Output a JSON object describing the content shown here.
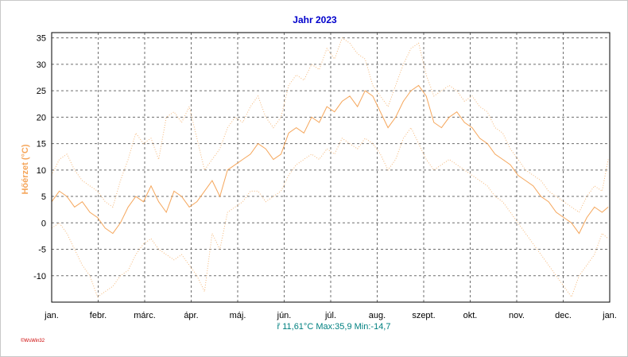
{
  "chart_data": {
    "type": "line",
    "title": "Jahr 2023",
    "ylabel": "Hőérzet (°C)",
    "ylim": [
      -15,
      36
    ],
    "y_ticks": [
      35,
      30,
      25,
      20,
      15,
      10,
      5,
      0,
      -5,
      -10
    ],
    "x_ticks": [
      "jan.",
      "febr.",
      "márc.",
      "ápr.",
      "máj.",
      "jún.",
      "júl.",
      "aug.",
      "szept.",
      "okt.",
      "nov.",
      "dec.",
      "jan."
    ],
    "grid": true,
    "series": [
      {
        "style": "solid",
        "color": "#f5a65b",
        "x": [
          1,
          6,
          11,
          16,
          21,
          26,
          31,
          36,
          41,
          46,
          51,
          56,
          61,
          66,
          71,
          76,
          81,
          86,
          91,
          96,
          101,
          106,
          111,
          116,
          121,
          126,
          131,
          136,
          141,
          146,
          151,
          156,
          161,
          166,
          171,
          176,
          181,
          186,
          191,
          196,
          201,
          206,
          211,
          216,
          221,
          226,
          231,
          236,
          241,
          246,
          251,
          256,
          261,
          266,
          271,
          276,
          281,
          286,
          291,
          296,
          301,
          306,
          311,
          316,
          321,
          326,
          331,
          336,
          341,
          346,
          351,
          356,
          361,
          365
        ],
        "values": [
          4,
          6,
          5,
          3,
          4,
          2,
          1,
          -1,
          -2,
          0,
          3,
          5,
          4,
          7,
          4,
          2,
          6,
          5,
          3,
          4,
          6,
          8,
          5,
          10,
          11,
          12,
          13,
          15,
          14,
          12,
          13,
          17,
          18,
          17,
          20,
          19,
          22,
          21,
          23,
          24,
          22,
          25,
          24,
          21,
          18,
          20,
          23,
          25,
          26,
          24,
          19,
          18,
          20,
          21,
          19,
          18,
          16,
          15,
          13,
          12,
          11,
          9,
          8,
          7,
          5,
          4,
          2,
          1,
          0,
          -2,
          1,
          3,
          2,
          3
        ]
      },
      {
        "style": "dotted",
        "color": "#f5b87a",
        "x": [
          1,
          6,
          11,
          16,
          21,
          26,
          31,
          36,
          41,
          46,
          51,
          56,
          61,
          66,
          71,
          76,
          81,
          86,
          91,
          96,
          101,
          106,
          111,
          116,
          121,
          126,
          131,
          136,
          141,
          146,
          151,
          156,
          161,
          166,
          171,
          176,
          181,
          186,
          191,
          196,
          201,
          206,
          211,
          216,
          221,
          226,
          231,
          236,
          241,
          246,
          251,
          256,
          261,
          266,
          271,
          276,
          281,
          286,
          291,
          296,
          301,
          306,
          311,
          316,
          321,
          326,
          331,
          336,
          341,
          346,
          351,
          356,
          361,
          365
        ],
        "values": [
          9,
          12,
          13,
          10,
          8,
          7,
          6,
          4,
          3,
          8,
          12,
          17,
          15,
          16,
          12,
          20,
          21,
          19,
          22,
          16,
          10,
          12,
          14,
          18,
          20,
          19,
          22,
          24,
          20,
          18,
          20,
          26,
          28,
          27,
          30,
          29,
          33,
          31,
          35,
          34,
          32,
          31,
          26,
          24,
          22,
          26,
          30,
          33,
          34,
          28,
          24,
          25,
          26,
          25,
          23,
          24,
          22,
          21,
          18,
          17,
          14,
          12,
          10,
          9,
          8,
          6,
          5,
          4,
          3,
          2,
          5,
          7,
          6,
          12
        ]
      },
      {
        "style": "dotted",
        "color": "#f5b87a",
        "x": [
          1,
          6,
          11,
          16,
          21,
          26,
          31,
          36,
          41,
          46,
          51,
          56,
          61,
          66,
          71,
          76,
          81,
          86,
          91,
          96,
          101,
          106,
          111,
          116,
          121,
          126,
          131,
          136,
          141,
          146,
          151,
          156,
          161,
          166,
          171,
          176,
          181,
          186,
          191,
          196,
          201,
          206,
          211,
          216,
          221,
          226,
          231,
          236,
          241,
          246,
          251,
          256,
          261,
          266,
          271,
          276,
          281,
          286,
          291,
          296,
          301,
          306,
          311,
          316,
          321,
          326,
          331,
          336,
          341,
          346,
          351,
          356,
          361,
          365
        ],
        "values": [
          -1,
          0,
          -2,
          -5,
          -8,
          -10,
          -14,
          -13,
          -12,
          -10,
          -9,
          -6,
          -4,
          -3,
          -5,
          -6,
          -7,
          -6,
          -8,
          -10,
          -13,
          -2,
          -5,
          2,
          3,
          4,
          6,
          6,
          4,
          5,
          6,
          9,
          11,
          12,
          13,
          12,
          14,
          13,
          16,
          15,
          14,
          16,
          15,
          13,
          10,
          12,
          16,
          18,
          15,
          12,
          10,
          11,
          12,
          11,
          10,
          9,
          8,
          7,
          5,
          4,
          2,
          0,
          -2,
          -4,
          -6,
          -8,
          -10,
          -12,
          -14,
          -10,
          -8,
          -6,
          -2,
          -3
        ]
      }
    ]
  },
  "stats_text": "ř 11,61°C  Max:35,9  Min:-14,7",
  "logo_text": "©WsWin32"
}
